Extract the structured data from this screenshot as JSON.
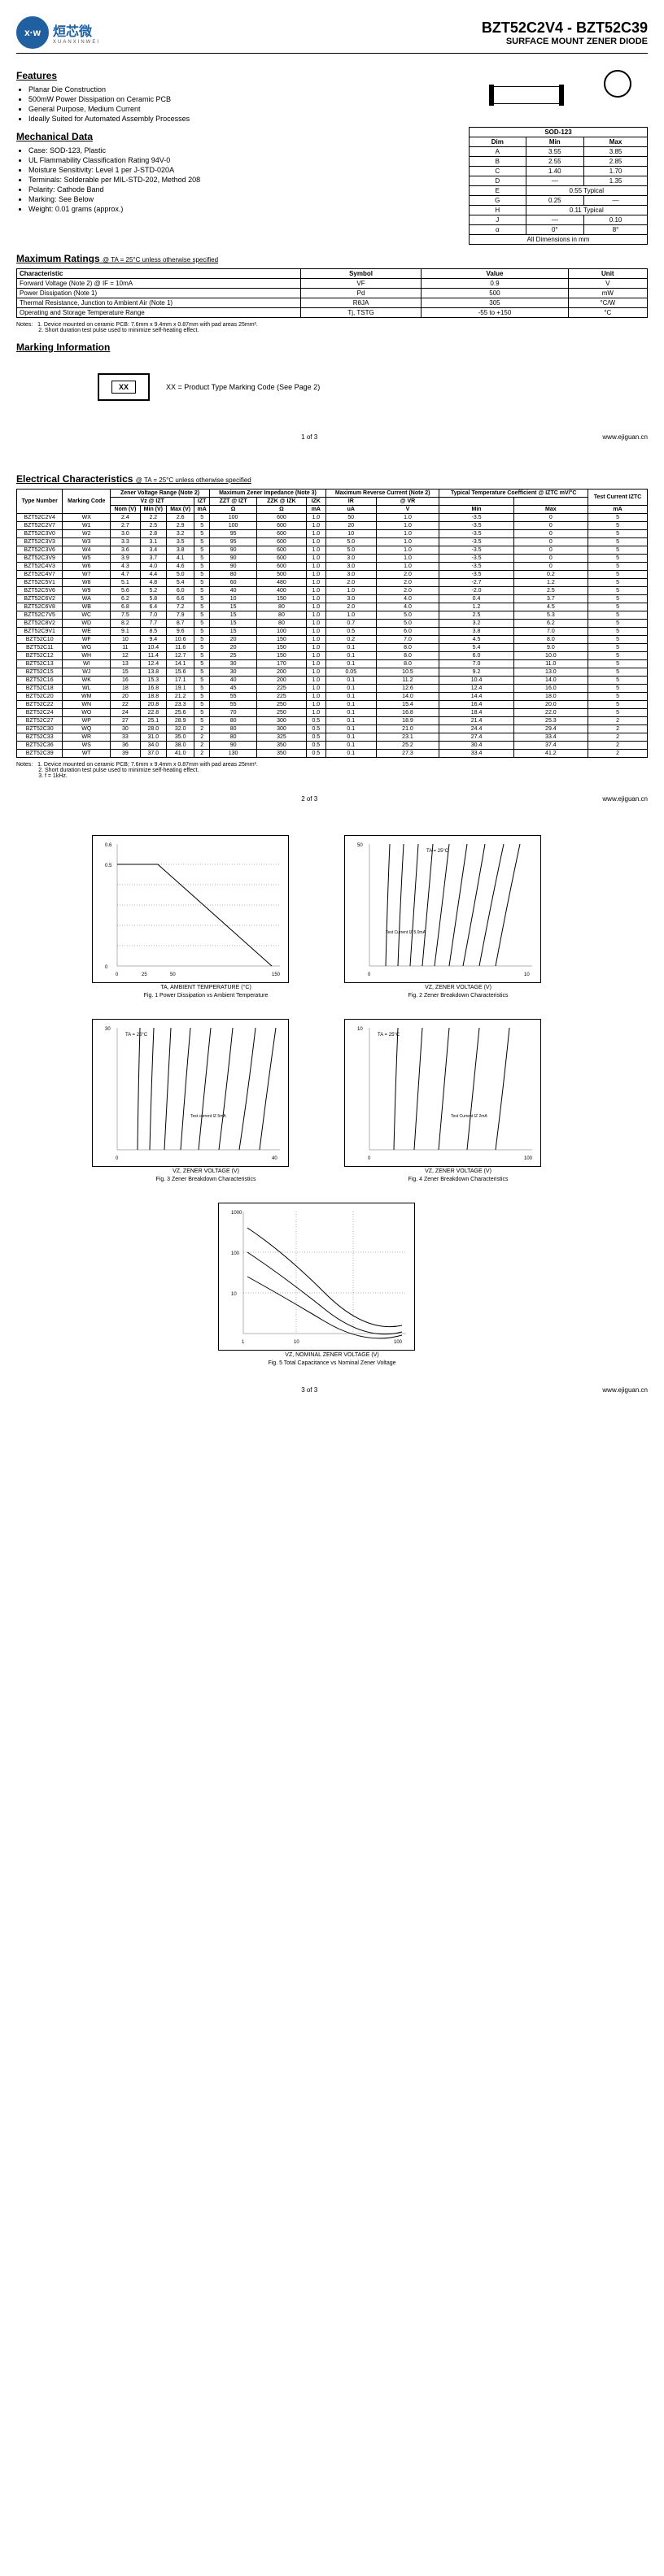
{
  "header": {
    "logo_chars": "x·w",
    "logo_text": "烜芯微",
    "logo_sub": "XUANXINWEI",
    "part_range": "BZT52C2V4 - BZT52C39",
    "subtitle": "SURFACE MOUNT ZENER DIODE"
  },
  "features": {
    "heading": "Features",
    "items": [
      "Planar Die Construction",
      "500mW Power Dissipation on Ceramic PCB",
      "General Purpose, Medium Current",
      "Ideally Suited for Automated Assembly Processes"
    ]
  },
  "mechanical": {
    "heading": "Mechanical Data",
    "items": [
      "Case: SOD-123, Plastic",
      "UL Flammability Classification Rating 94V-0",
      "Moisture Sensitivity: Level 1 per J-STD-020A",
      "Terminals: Solderable per MIL-STD-202, Method 208",
      "Polarity: Cathode Band",
      "Marking: See Below",
      "Weight: 0.01 grams (approx.)"
    ]
  },
  "dims": {
    "title": "SOD-123",
    "header": [
      "Dim",
      "Min",
      "Max"
    ],
    "rows": [
      [
        "A",
        "3.55",
        "3.85"
      ],
      [
        "B",
        "2.55",
        "2.85"
      ],
      [
        "C",
        "1.40",
        "1.70"
      ],
      [
        "D",
        "—",
        "1.35"
      ],
      [
        "E",
        "0.55 Typical",
        ""
      ],
      [
        "G",
        "0.25",
        "—"
      ],
      [
        "H",
        "0.11 Typical",
        ""
      ],
      [
        "J",
        "—",
        "0.10"
      ],
      [
        "α",
        "0°",
        "8°"
      ]
    ],
    "footer": "All Dimensions in mm"
  },
  "maxratings": {
    "heading": "Maximum Ratings",
    "cond": "@ TA = 25°C unless otherwise specified",
    "header": [
      "Characteristic",
      "Symbol",
      "Value",
      "Unit"
    ],
    "rows": [
      [
        "Forward Voltage (Note 2)   @ IF = 10mA",
        "VF",
        "0.9",
        "V"
      ],
      [
        "Power Dissipation (Note 1)",
        "Pd",
        "500",
        "mW"
      ],
      [
        "Thermal Resistance, Junction to Ambient Air (Note 1)",
        "RθJA",
        "305",
        "°C/W"
      ],
      [
        "Operating and Storage Temperature Range",
        "Tj, TSTG",
        "-55 to +150",
        "°C"
      ]
    ]
  },
  "notes1": "Notes:   1. Device mounted on ceramic PCB: 7.6mm x 9.4mm x 0.87mm with pad areas 25mm².\n              2. Short duration test pulse used to minimize self-heating effect.",
  "marking": {
    "heading": "Marking Information",
    "code": "XX",
    "desc": "XX = Product Type Marking Code (See Page 2)"
  },
  "footer": {
    "p1": "1 of 3",
    "p2": "2 of 3",
    "p3": "3 of 3",
    "url": "www.ejiguan.cn"
  },
  "ec": {
    "heading": "Electrical Characteristics",
    "cond": "@ TA = 25°C unless otherwise specified",
    "groups": [
      "Type Number",
      "Marking Code",
      "Zener Voltage Range (Note 2)",
      "Maximum Zener Impedance (Note 3)",
      "Maximum Reverse Current (Note 2)",
      "Typical Temperature Coefficient @ IZTC mV/°C",
      "Test Current IZTC"
    ],
    "sub": [
      "",
      "",
      "Vz @ IZT",
      "",
      "IZT",
      "ZZT @ IZT",
      "ZZK @ IZK",
      "IZK",
      "IR",
      "@ VR",
      "",
      "",
      ""
    ],
    "units": [
      "",
      "",
      "Nom (V)",
      "Min (V)",
      "Max (V)",
      "mA",
      "Ω",
      "Ω",
      "mA",
      "uA",
      "V",
      "Min",
      "Max",
      "mA"
    ],
    "rows": [
      [
        "BZT52C2V4",
        "WX",
        "2.4",
        "2.2",
        "2.6",
        "5",
        "100",
        "600",
        "1.0",
        "50",
        "1.0",
        "-3.5",
        "0",
        "5"
      ],
      [
        "BZT52C2V7",
        "W1",
        "2.7",
        "2.5",
        "2.9",
        "5",
        "100",
        "600",
        "1.0",
        "20",
        "1.0",
        "-3.5",
        "0",
        "5"
      ],
      [
        "BZT52C3V0",
        "W2",
        "3.0",
        "2.8",
        "3.2",
        "5",
        "95",
        "600",
        "1.0",
        "10",
        "1.0",
        "-3.5",
        "0",
        "5"
      ],
      [
        "BZT52C3V3",
        "W3",
        "3.3",
        "3.1",
        "3.5",
        "5",
        "95",
        "600",
        "1.0",
        "5.0",
        "1.0",
        "-3.5",
        "0",
        "5"
      ],
      [
        "BZT52C3V6",
        "W4",
        "3.6",
        "3.4",
        "3.8",
        "5",
        "90",
        "600",
        "1.0",
        "5.0",
        "1.0",
        "-3.5",
        "0",
        "5"
      ],
      [
        "BZT52C3V9",
        "W5",
        "3.9",
        "3.7",
        "4.1",
        "5",
        "90",
        "600",
        "1.0",
        "3.0",
        "1.0",
        "-3.5",
        "0",
        "5"
      ],
      [
        "BZT52C4V3",
        "W6",
        "4.3",
        "4.0",
        "4.6",
        "5",
        "90",
        "600",
        "1.0",
        "3.0",
        "1.0",
        "-3.5",
        "0",
        "5"
      ],
      [
        "BZT52C4V7",
        "W7",
        "4.7",
        "4.4",
        "5.0",
        "5",
        "80",
        "500",
        "1.0",
        "3.0",
        "2.0",
        "-3.5",
        "0.2",
        "5"
      ],
      [
        "BZT52C5V1",
        "W8",
        "5.1",
        "4.8",
        "5.4",
        "5",
        "60",
        "480",
        "1.0",
        "2.0",
        "2.0",
        "-2.7",
        "1.2",
        "5"
      ],
      [
        "BZT52C5V6",
        "W9",
        "5.6",
        "5.2",
        "6.0",
        "5",
        "40",
        "400",
        "1.0",
        "1.0",
        "2.0",
        "-2.0",
        "2.5",
        "5"
      ],
      [
        "BZT52C6V2",
        "WA",
        "6.2",
        "5.8",
        "6.6",
        "5",
        "10",
        "150",
        "1.0",
        "3.0",
        "4.0",
        "0.4",
        "3.7",
        "5"
      ],
      [
        "BZT52C6V8",
        "WB",
        "6.8",
        "6.4",
        "7.2",
        "5",
        "15",
        "80",
        "1.0",
        "2.0",
        "4.0",
        "1.2",
        "4.5",
        "5"
      ],
      [
        "BZT52C7V5",
        "WC",
        "7.5",
        "7.0",
        "7.9",
        "5",
        "15",
        "80",
        "1.0",
        "1.0",
        "5.0",
        "2.5",
        "5.3",
        "5"
      ],
      [
        "BZT52C8V2",
        "WD",
        "8.2",
        "7.7",
        "8.7",
        "5",
        "15",
        "80",
        "1.0",
        "0.7",
        "5.0",
        "3.2",
        "6.2",
        "5"
      ],
      [
        "BZT52C9V1",
        "WE",
        "9.1",
        "8.5",
        "9.6",
        "5",
        "15",
        "100",
        "1.0",
        "0.5",
        "6.0",
        "3.8",
        "7.0",
        "5"
      ],
      [
        "BZT52C10",
        "WF",
        "10",
        "9.4",
        "10.6",
        "5",
        "20",
        "150",
        "1.0",
        "0.2",
        "7.0",
        "4.5",
        "8.0",
        "5"
      ],
      [
        "BZT52C11",
        "WG",
        "11",
        "10.4",
        "11.6",
        "5",
        "20",
        "150",
        "1.0",
        "0.1",
        "8.0",
        "5.4",
        "9.0",
        "5"
      ],
      [
        "BZT52C12",
        "WH",
        "12",
        "11.4",
        "12.7",
        "5",
        "25",
        "150",
        "1.0",
        "0.1",
        "8.0",
        "6.0",
        "10.0",
        "5"
      ],
      [
        "BZT52C13",
        "WI",
        "13",
        "12.4",
        "14.1",
        "5",
        "30",
        "170",
        "1.0",
        "0.1",
        "8.0",
        "7.0",
        "11.0",
        "5"
      ],
      [
        "BZT52C15",
        "WJ",
        "15",
        "13.8",
        "15.6",
        "5",
        "30",
        "200",
        "1.0",
        "0.05",
        "10.5",
        "9.2",
        "13.0",
        "5"
      ],
      [
        "BZT52C16",
        "WK",
        "16",
        "15.3",
        "17.1",
        "5",
        "40",
        "200",
        "1.0",
        "0.1",
        "11.2",
        "10.4",
        "14.0",
        "5"
      ],
      [
        "BZT52C18",
        "WL",
        "18",
        "16.8",
        "19.1",
        "5",
        "45",
        "225",
        "1.0",
        "0.1",
        "12.6",
        "12.4",
        "16.0",
        "5"
      ],
      [
        "BZT52C20",
        "WM",
        "20",
        "18.8",
        "21.2",
        "5",
        "55",
        "225",
        "1.0",
        "0.1",
        "14.0",
        "14.4",
        "18.0",
        "5"
      ],
      [
        "BZT52C22",
        "WN",
        "22",
        "20.8",
        "23.3",
        "5",
        "55",
        "250",
        "1.0",
        "0.1",
        "15.4",
        "16.4",
        "20.0",
        "5"
      ],
      [
        "BZT52C24",
        "WO",
        "24",
        "22.8",
        "25.6",
        "5",
        "70",
        "250",
        "1.0",
        "0.1",
        "16.8",
        "18.4",
        "22.0",
        "5"
      ],
      [
        "BZT52C27",
        "WP",
        "27",
        "25.1",
        "28.9",
        "5",
        "80",
        "300",
        "0.5",
        "0.1",
        "18.9",
        "21.4",
        "25.3",
        "2"
      ],
      [
        "BZT52C30",
        "WQ",
        "30",
        "28.0",
        "32.0",
        "2",
        "80",
        "300",
        "0.5",
        "0.1",
        "21.0",
        "24.4",
        "29.4",
        "2"
      ],
      [
        "BZT52C33",
        "WR",
        "33",
        "31.0",
        "35.0",
        "2",
        "80",
        "325",
        "0.5",
        "0.1",
        "23.1",
        "27.4",
        "33.4",
        "2"
      ],
      [
        "BZT52C36",
        "WS",
        "36",
        "34.0",
        "38.0",
        "2",
        "90",
        "350",
        "0.5",
        "0.1",
        "25.2",
        "30.4",
        "37.4",
        "2"
      ],
      [
        "BZT52C39",
        "WT",
        "39",
        "37.0",
        "41.0",
        "2",
        "130",
        "350",
        "0.5",
        "0.1",
        "27.3",
        "33.4",
        "41.2",
        "2"
      ]
    ]
  },
  "notes2": "Notes:   1. Device mounted on ceramic PCB; 7.6mm x 9.4mm x 0.87mm with pad areas 25mm².\n              2. Short duration test pulse used to minimize self-heating effect.\n              3. f = 1kHz.",
  "charts": {
    "c1": {
      "title": "Fig. 1  Power Dissipation vs Ambient Temperature",
      "x": "TA, AMBIENT TEMPERATURE (°C)",
      "y": "Pd, POWER DISSIPATION (W)"
    },
    "c2": {
      "title": "Fig. 2  Zener Breakdown Characteristics",
      "x": "VZ, ZENER VOLTAGE (V)",
      "y": "IZ, ZENER CURRENT (mA)",
      "note": "TA = 25°C",
      "note2": "Test Current IZ 5.0mA"
    },
    "c3": {
      "title": "Fig. 3  Zener Breakdown Characteristics",
      "x": "VZ, ZENER VOLTAGE (V)",
      "y": "IZ, ZENER CURRENT (mA)",
      "note": "TA = 25°C",
      "note2": "Test current IZ 5mA"
    },
    "c4": {
      "title": "Fig. 4  Zener Breakdown Characteristics",
      "x": "VZ, ZENER VOLTAGE (V)",
      "y": "IZ, ZENER CURRENT (mA)",
      "note": "TA = 25°C",
      "note2": "Test Current IZ 2mA"
    },
    "c5": {
      "title": "Fig. 5  Total Capacitance vs Nominal Zener Voltage",
      "x": "VZ, NOMINAL ZENER VOLTAGE (V)",
      "y": "CT, TOTAL CAPACITANCE (pF)"
    }
  }
}
